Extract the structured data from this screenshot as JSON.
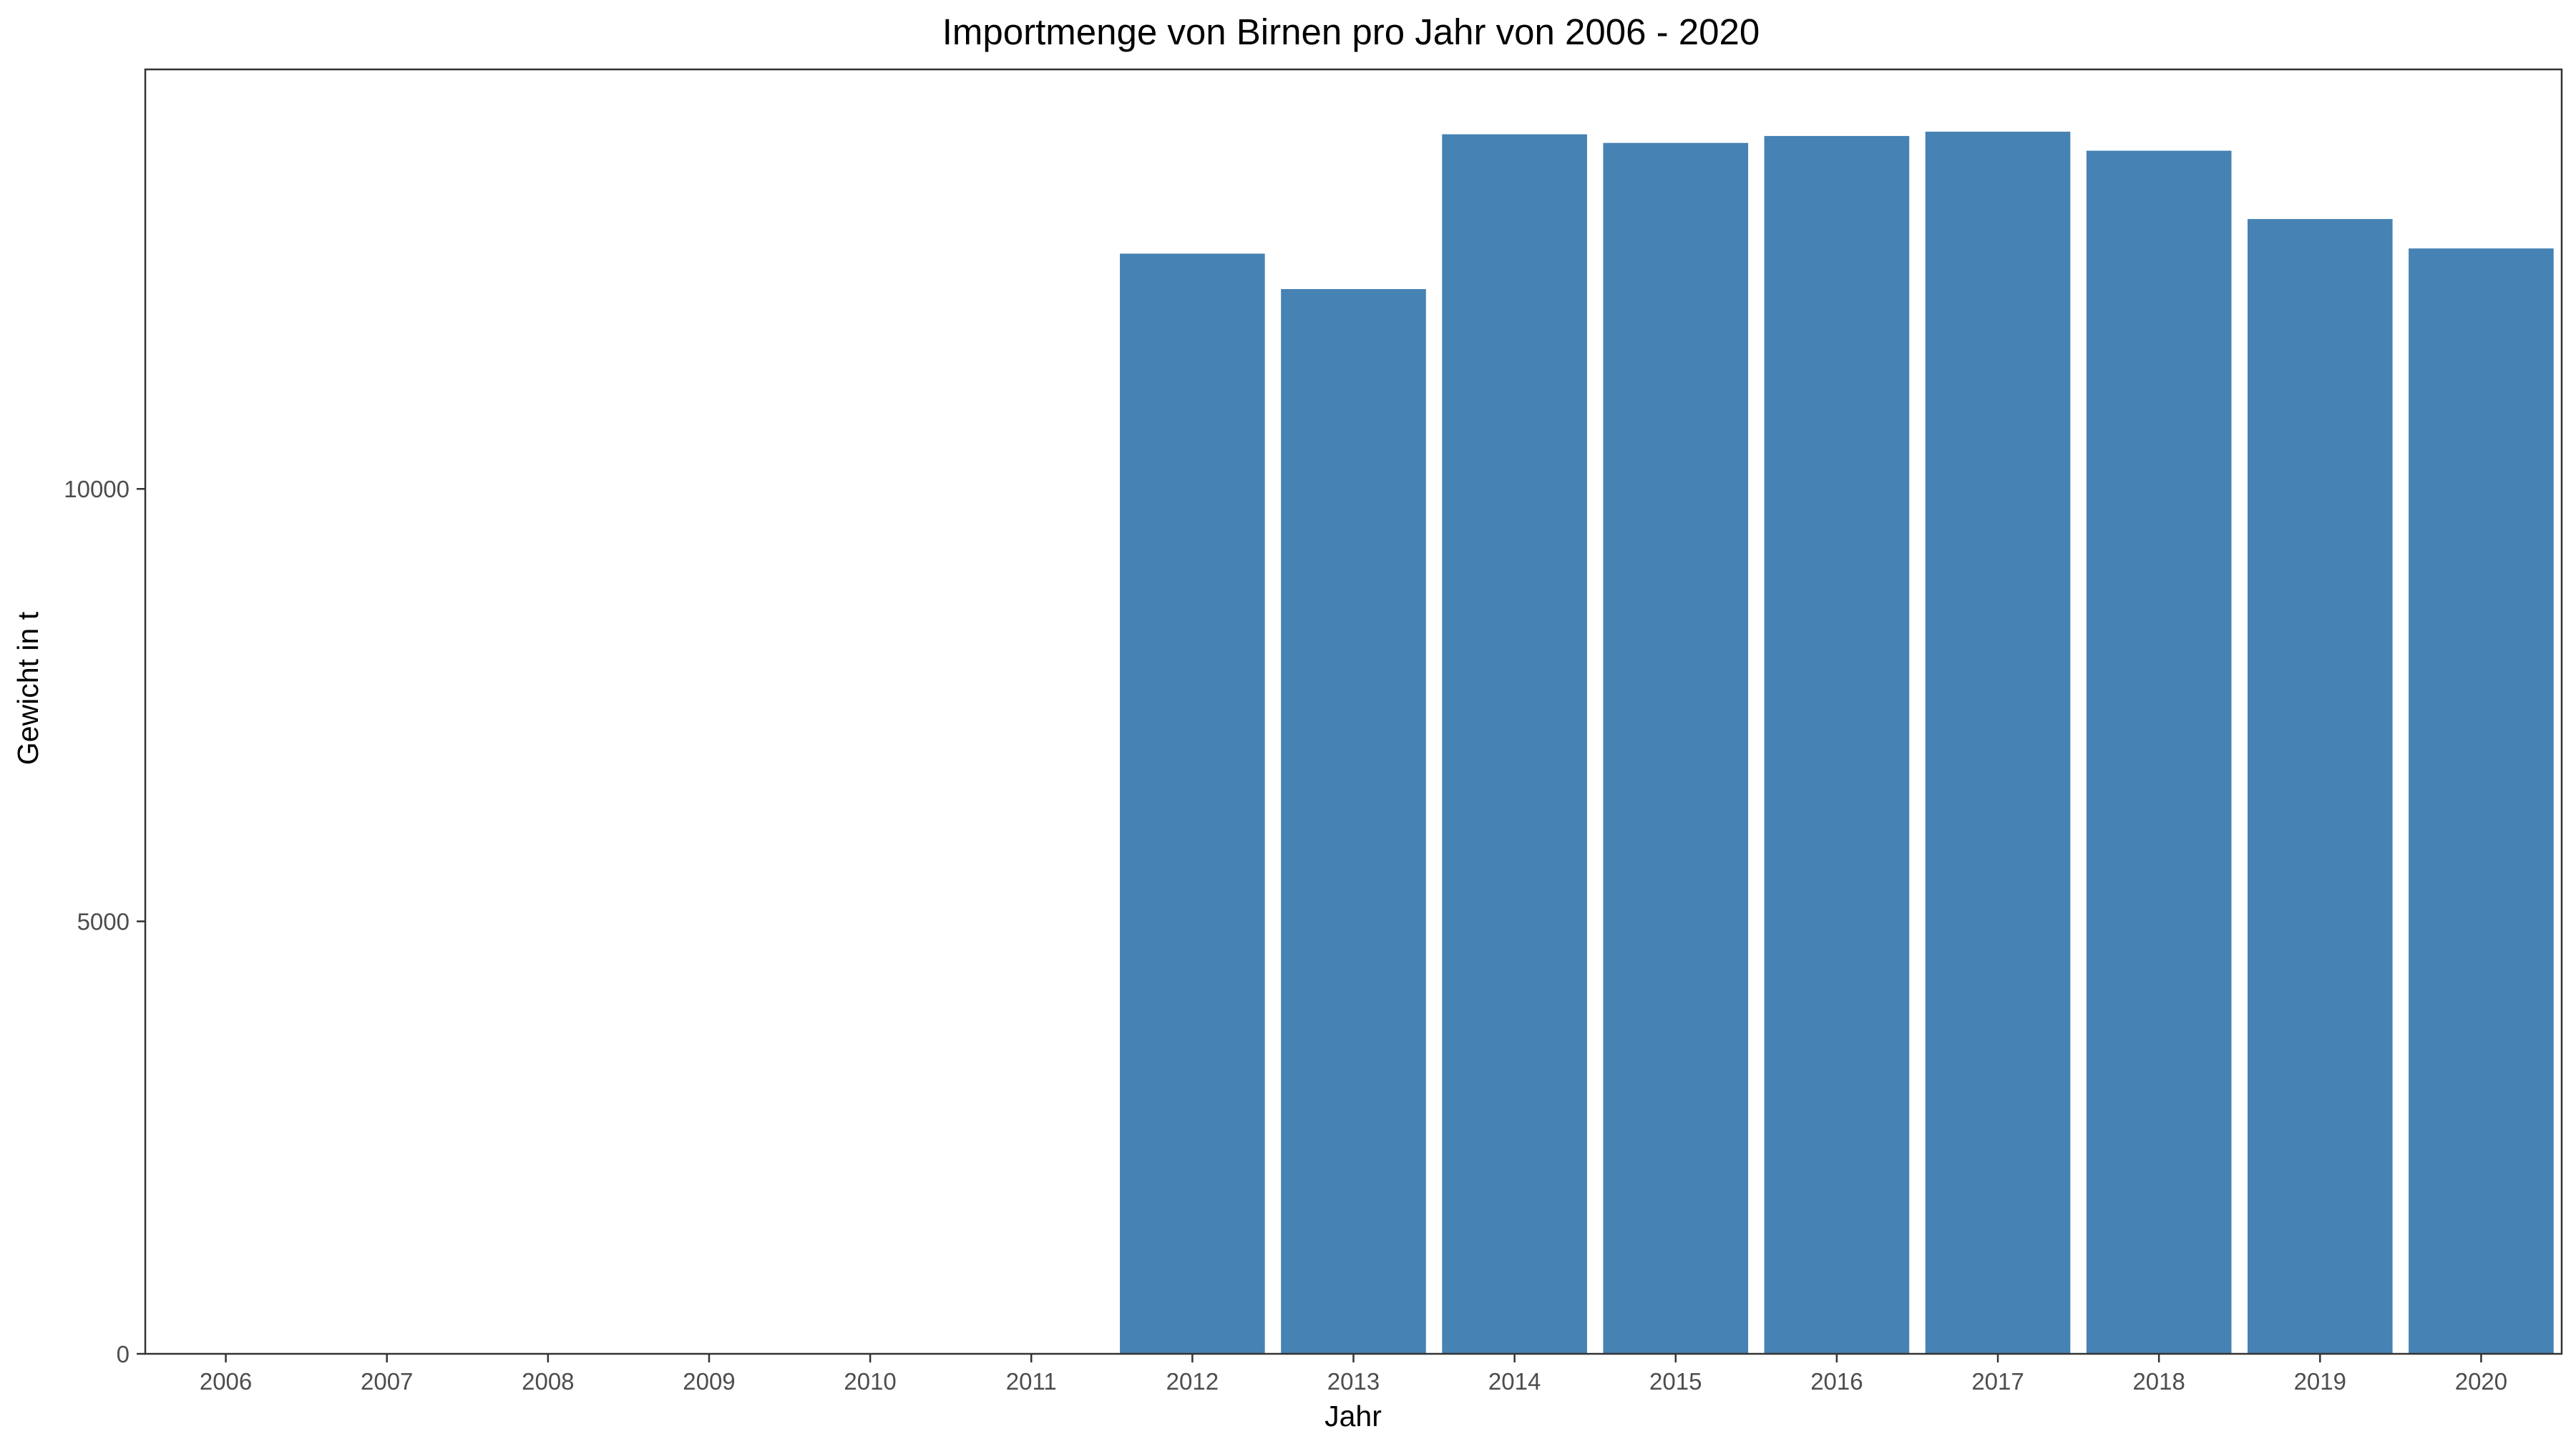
{
  "chart_data": {
    "type": "bar",
    "title": "Importmenge von Birnen pro Jahr von 2006 - 2020",
    "xlabel": "Jahr",
    "ylabel": "Gewicht in t",
    "categories": [
      "2006",
      "2007",
      "2008",
      "2009",
      "2010",
      "2011",
      "2012",
      "2013",
      "2014",
      "2015",
      "2016",
      "2017",
      "2018",
      "2019",
      "2020"
    ],
    "values": [
      0,
      0,
      0,
      0,
      0,
      0,
      12720,
      12310,
      14100,
      14000,
      14080,
      14130,
      13910,
      13120,
      12780
    ],
    "ylim": [
      0,
      14850
    ],
    "yticks": [
      0,
      5000,
      10000
    ],
    "ytick_labels": [
      "0",
      "5000",
      "10000"
    ],
    "bar_color": "#4682b4",
    "grid": false,
    "legend": "none"
  }
}
